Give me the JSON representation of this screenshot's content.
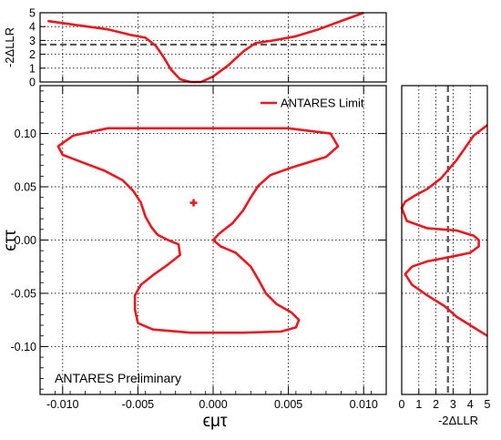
{
  "chart_data": [
    {
      "type": "line",
      "panel": "main",
      "xlabel": "ϵμτ",
      "ylabel": "ϵττ",
      "xlim": [
        -0.0115,
        0.0115
      ],
      "ylim": [
        -0.145,
        0.145
      ],
      "x_ticks": [
        "-0.010",
        "-0.005",
        "0.000",
        "0.005",
        "0.010"
      ],
      "y_ticks": [
        "-0.10",
        "-0.05",
        "0.00",
        "0.05",
        "0.10"
      ],
      "grid": true,
      "legend_position": "top-right",
      "annotation": "ANTARES Preliminary",
      "best_fit": {
        "x": -0.0013,
        "y": 0.035
      },
      "series": [
        {
          "name": "ANTARES Limit",
          "color": "#e8191f",
          "closed": true,
          "points": [
            [
              -0.007,
              0.105
            ],
            [
              0.0,
              0.105
            ],
            [
              0.005,
              0.105
            ],
            [
              0.0078,
              0.1
            ],
            [
              0.0083,
              0.088
            ],
            [
              0.0075,
              0.078
            ],
            [
              0.0052,
              0.068
            ],
            [
              0.0038,
              0.061
            ],
            [
              0.003,
              0.051
            ],
            [
              0.0025,
              0.04
            ],
            [
              0.002,
              0.028
            ],
            [
              0.0013,
              0.016
            ],
            [
              0.0004,
              0.006
            ],
            [
              0.0,
              0.0
            ],
            [
              0.0005,
              -0.006
            ],
            [
              0.0015,
              -0.012
            ],
            [
              0.0025,
              -0.025
            ],
            [
              0.003,
              -0.037
            ],
            [
              0.0035,
              -0.05
            ],
            [
              0.0042,
              -0.06
            ],
            [
              0.0052,
              -0.068
            ],
            [
              0.0057,
              -0.075
            ],
            [
              0.0055,
              -0.082
            ],
            [
              0.0045,
              -0.086
            ],
            [
              0.002,
              -0.087
            ],
            [
              -0.0015,
              -0.087
            ],
            [
              -0.004,
              -0.084
            ],
            [
              -0.005,
              -0.078
            ],
            [
              -0.0052,
              -0.065
            ],
            [
              -0.0052,
              -0.052
            ],
            [
              -0.0048,
              -0.042
            ],
            [
              -0.004,
              -0.033
            ],
            [
              -0.003,
              -0.023
            ],
            [
              -0.0022,
              -0.014
            ],
            [
              -0.0023,
              -0.004
            ],
            [
              -0.003,
              0.0
            ],
            [
              -0.0037,
              0.005
            ],
            [
              -0.0041,
              0.012
            ],
            [
              -0.0045,
              0.022
            ],
            [
              -0.0048,
              0.035
            ],
            [
              -0.0053,
              0.046
            ],
            [
              -0.006,
              0.056
            ],
            [
              -0.0072,
              0.065
            ],
            [
              -0.0087,
              0.073
            ],
            [
              -0.01,
              0.08
            ],
            [
              -0.0103,
              0.088
            ],
            [
              -0.0093,
              0.098
            ]
          ]
        }
      ]
    },
    {
      "type": "line",
      "panel": "top",
      "ylabel": "-2ΔLLR",
      "xlim": [
        -0.0115,
        0.0115
      ],
      "ylim": [
        0,
        5
      ],
      "y_ticks": [
        "0",
        "1",
        "2",
        "3",
        "4",
        "5"
      ],
      "grid": true,
      "threshold": 2.7,
      "series": [
        {
          "color": "#e8191f",
          "points": [
            [
              -0.011,
              4.4
            ],
            [
              -0.009,
              4.1
            ],
            [
              -0.007,
              3.8
            ],
            [
              -0.0055,
              3.4
            ],
            [
              -0.0045,
              3.2
            ],
            [
              -0.0038,
              2.6
            ],
            [
              -0.0033,
              1.8
            ],
            [
              -0.0028,
              0.9
            ],
            [
              -0.0022,
              0.2
            ],
            [
              -0.0015,
              0.0
            ],
            [
              -0.0008,
              0.0
            ],
            [
              0.0,
              0.4
            ],
            [
              0.001,
              1.2
            ],
            [
              0.002,
              2.2
            ],
            [
              0.0028,
              2.8
            ],
            [
              0.004,
              3.0
            ],
            [
              0.0055,
              3.3
            ],
            [
              0.007,
              3.8
            ],
            [
              0.0085,
              4.4
            ],
            [
              0.01,
              5.0
            ]
          ]
        }
      ]
    },
    {
      "type": "line",
      "panel": "right",
      "xlabel": "-2ΔLLR",
      "xlim": [
        0,
        5
      ],
      "ylim": [
        -0.145,
        0.145
      ],
      "x_ticks": [
        "0",
        "1",
        "2",
        "3",
        "4",
        "5"
      ],
      "grid": true,
      "threshold": 2.7,
      "series": [
        {
          "color": "#e8191f",
          "points": [
            [
              5.0,
              0.108
            ],
            [
              4.2,
              0.098
            ],
            [
              3.2,
              0.075
            ],
            [
              2.3,
              0.058
            ],
            [
              1.5,
              0.048
            ],
            [
              0.8,
              0.042
            ],
            [
              0.2,
              0.036
            ],
            [
              0.0,
              0.03
            ],
            [
              0.3,
              0.018
            ],
            [
              1.5,
              0.011
            ],
            [
              3.2,
              0.009
            ],
            [
              4.2,
              0.004
            ],
            [
              4.5,
              0.0
            ],
            [
              4.5,
              -0.006
            ],
            [
              4.0,
              -0.012
            ],
            [
              2.8,
              -0.016
            ],
            [
              1.5,
              -0.02
            ],
            [
              0.6,
              -0.025
            ],
            [
              0.2,
              -0.032
            ],
            [
              0.6,
              -0.042
            ],
            [
              1.5,
              -0.052
            ],
            [
              2.5,
              -0.062
            ],
            [
              3.2,
              -0.072
            ],
            [
              4.2,
              -0.082
            ],
            [
              5.0,
              -0.09
            ]
          ]
        }
      ]
    }
  ]
}
